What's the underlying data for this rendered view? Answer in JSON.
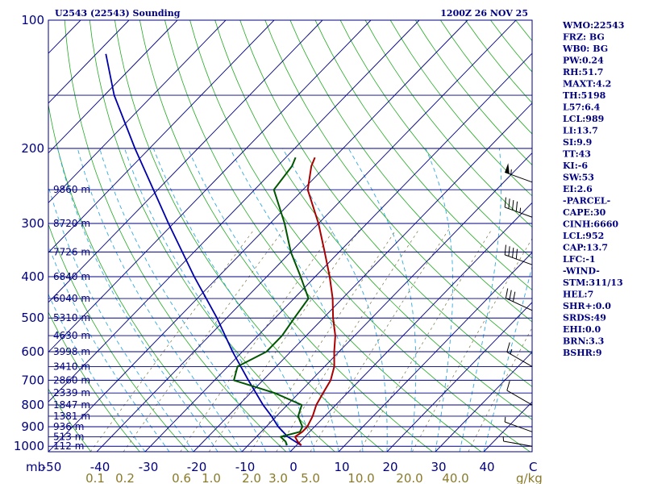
{
  "title_left": "U2543 (22543) Sounding",
  "title_right": "1200Z 26 NOV 25",
  "chart_data": {
    "type": "skew-t",
    "pressure_levels": [
      100,
      200,
      300,
      400,
      500,
      600,
      700,
      800,
      900,
      1000
    ],
    "pressure_unit": "mb",
    "temperature_ticks": [
      -50,
      -40,
      -30,
      -20,
      -10,
      0,
      10,
      20,
      30,
      40
    ],
    "temperature_tick_labels": [
      "-50",
      "-40",
      "-30",
      "-20",
      "-10",
      "0",
      "10",
      "20",
      "30",
      "40"
    ],
    "temperature_unit": "C",
    "mixing_ratio_labels": [
      "0.1",
      "0.2",
      "0.6",
      "1.0",
      "2.0",
      "3.0",
      "5.0",
      "10.0",
      "20.0",
      "40.0"
    ],
    "mixing_ratio_unit": "g/kg",
    "height_labels": [
      {
        "p": 250,
        "label": "9860 m"
      },
      {
        "p": 300,
        "label": "8720 m"
      },
      {
        "p": 350,
        "label": "7726 m"
      },
      {
        "p": 400,
        "label": "6840 m"
      },
      {
        "p": 450,
        "label": "6040 m"
      },
      {
        "p": 500,
        "label": "5310 m"
      },
      {
        "p": 550,
        "label": "4630 m"
      },
      {
        "p": 600,
        "label": "3998 m"
      },
      {
        "p": 650,
        "label": "3410 m"
      },
      {
        "p": 700,
        "label": "2860 m"
      },
      {
        "p": 750,
        "label": "2339 m"
      },
      {
        "p": 800,
        "label": "1847 m"
      },
      {
        "p": 850,
        "label": "1381 m"
      },
      {
        "p": 900,
        "label": "936 m"
      },
      {
        "p": 950,
        "label": "513 m"
      },
      {
        "p": 1000,
        "label": "112 m"
      }
    ],
    "temperature_profile": [
      {
        "p": 995,
        "t": 1.0
      },
      {
        "p": 975,
        "t": -0.5
      },
      {
        "p": 950,
        "t": -2.0
      },
      {
        "p": 925,
        "t": -1.5
      },
      {
        "p": 900,
        "t": -1.5
      },
      {
        "p": 875,
        "t": -2.0
      },
      {
        "p": 850,
        "t": -2.5
      },
      {
        "p": 800,
        "t": -4.0
      },
      {
        "p": 750,
        "t": -5.0
      },
      {
        "p": 700,
        "t": -6.0
      },
      {
        "p": 650,
        "t": -8.0
      },
      {
        "p": 600,
        "t": -11.0
      },
      {
        "p": 550,
        "t": -14.0
      },
      {
        "p": 500,
        "t": -18.0
      },
      {
        "p": 450,
        "t": -22.0
      },
      {
        "p": 400,
        "t": -27.0
      },
      {
        "p": 350,
        "t": -33.0
      },
      {
        "p": 300,
        "t": -40.0
      },
      {
        "p": 250,
        "t": -49.0
      },
      {
        "p": 220,
        "t": -53.0
      },
      {
        "p": 210,
        "t": -54.0
      }
    ],
    "dewpoint_profile": [
      {
        "p": 995,
        "t": -2.0
      },
      {
        "p": 975,
        "t": -3.0
      },
      {
        "p": 950,
        "t": -5.0
      },
      {
        "p": 925,
        "t": -2.0
      },
      {
        "p": 900,
        "t": -2.5
      },
      {
        "p": 875,
        "t": -4.0
      },
      {
        "p": 850,
        "t": -5.5
      },
      {
        "p": 800,
        "t": -7.0
      },
      {
        "p": 750,
        "t": -15.0
      },
      {
        "p": 700,
        "t": -26.0
      },
      {
        "p": 650,
        "t": -28.0
      },
      {
        "p": 600,
        "t": -25.0
      },
      {
        "p": 550,
        "t": -25.0
      },
      {
        "p": 500,
        "t": -26.0
      },
      {
        "p": 450,
        "t": -27.0
      },
      {
        "p": 400,
        "t": -33.0
      },
      {
        "p": 350,
        "t": -40.0
      },
      {
        "p": 300,
        "t": -47.0
      },
      {
        "p": 250,
        "t": -56.0
      },
      {
        "p": 220,
        "t": -57.0
      },
      {
        "p": 210,
        "t": -58.0
      }
    ],
    "parcel_profile": [
      {
        "p": 995,
        "t": 1.0
      },
      {
        "p": 950,
        "t": -3.5
      },
      {
        "p": 900,
        "t": -7.5
      },
      {
        "p": 850,
        "t": -11.0
      },
      {
        "p": 800,
        "t": -15.0
      },
      {
        "p": 700,
        "t": -23.0
      },
      {
        "p": 600,
        "t": -32.0
      },
      {
        "p": 500,
        "t": -42.0
      },
      {
        "p": 400,
        "t": -55.0
      },
      {
        "p": 300,
        "t": -71.0
      },
      {
        "p": 200,
        "t": -93.0
      },
      {
        "p": 150,
        "t": -108.0
      },
      {
        "p": 120,
        "t": -118.0
      }
    ],
    "wind_barbs": [
      {
        "p": 240,
        "dir": 290,
        "spd": 55
      },
      {
        "p": 290,
        "dir": 290,
        "spd": 45
      },
      {
        "p": 375,
        "dir": 290,
        "spd": 40
      },
      {
        "p": 480,
        "dir": 295,
        "spd": 30
      },
      {
        "p": 650,
        "dir": 300,
        "spd": 15
      },
      {
        "p": 800,
        "dir": 300,
        "spd": 12
      },
      {
        "p": 925,
        "dir": 290,
        "spd": 8
      },
      {
        "p": 1000,
        "dir": 280,
        "spd": 5
      }
    ]
  },
  "indices": [
    "WMO:22543",
    "FRZ: BG",
    "WB0: BG",
    "PW:0.24",
    "RH:51.7",
    "MAXT:4.2",
    "TH:5198",
    "L57:6.4",
    "LCL:989",
    "LI:13.7",
    "SI:9.9",
    "TT:43",
    "KI:-6",
    "SW:53",
    "EI:2.6",
    "-PARCEL-",
    "CAPE:30",
    "CINH:6660",
    "LCL:952",
    "CAP:13.7",
    "LFC:-1",
    "-WIND-",
    "STM:311/13",
    "HEL:7",
    "SHR+:0.0",
    "SRDS:49",
    "EHI:0.0",
    "BRN:3.3",
    "BSHR:9"
  ],
  "colors": {
    "frame": "#000080",
    "isobar": "#000080",
    "isotherm": "#000080",
    "dry_adiabat": "#22aa22",
    "moist_adiabat": "#33aadd",
    "mixing_ratio": "#777744",
    "temperature": "#aa0000",
    "dewpoint": "#005500",
    "parcel": "#0000aa",
    "wind_barb": "#000000"
  }
}
